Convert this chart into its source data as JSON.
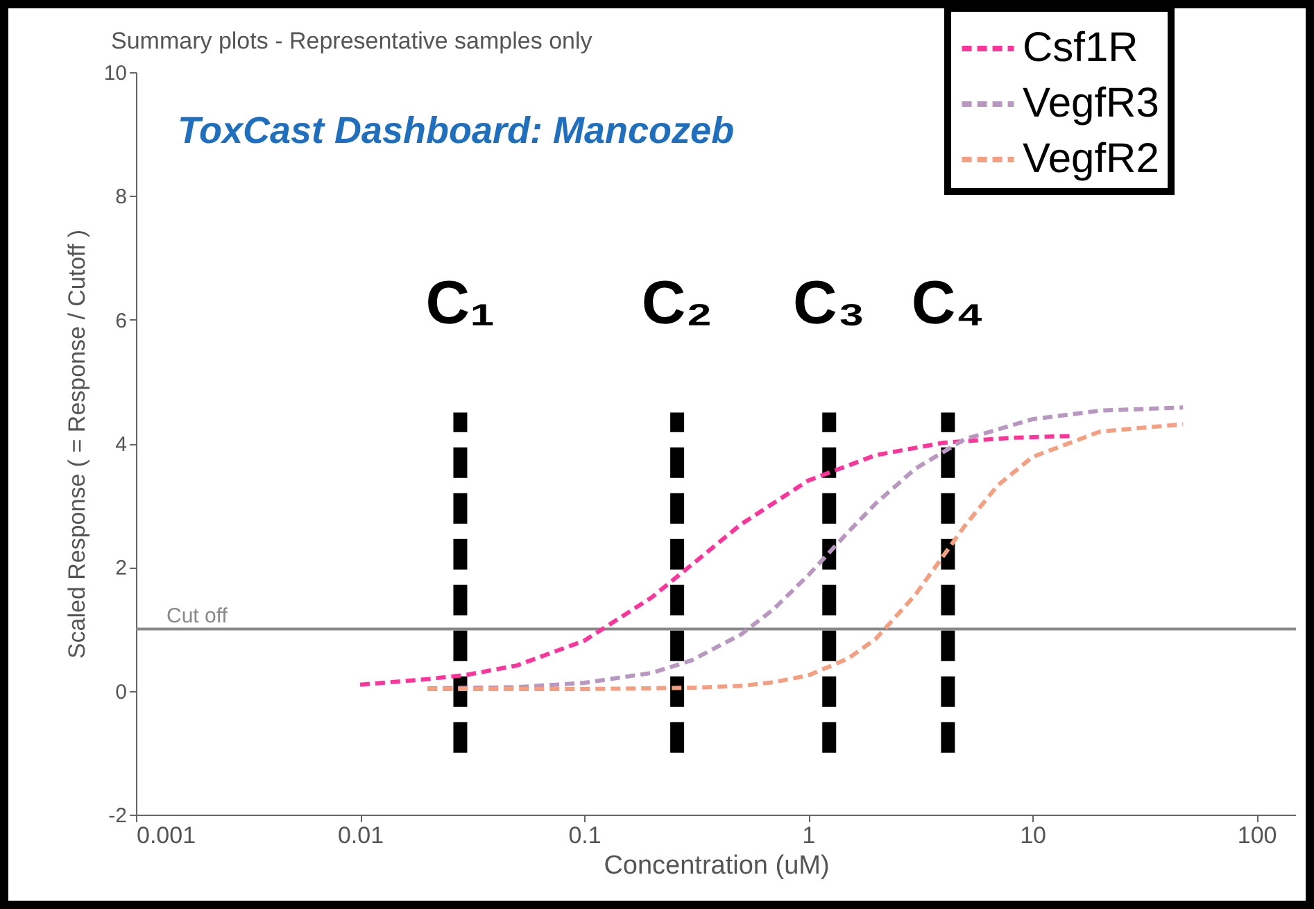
{
  "chart_data": {
    "type": "line",
    "title": "Summary plots - Representative samples only",
    "subtitle": "ToxCast Dashboard: Mancozeb",
    "xlabel": "Concentration (uM)",
    "ylabel": "Scaled Response ( = Response / Cutoff )",
    "log": "x",
    "xlim": [
      0.001,
      150
    ],
    "xticks": [
      0.001,
      0.01,
      0.1,
      1,
      10,
      100
    ],
    "ylim": [
      -2,
      10
    ],
    "yticks": [
      -2,
      0,
      2,
      4,
      6,
      8,
      10
    ],
    "grid": false,
    "legend": "top right",
    "line_style": "dashed",
    "marker": "none",
    "series": [
      {
        "name": "Csf1R",
        "color": "#ff3399",
        "x": [
          0.01,
          0.02,
          0.03,
          0.05,
          0.1,
          0.2,
          0.3,
          0.5,
          1,
          2,
          4,
          8,
          15
        ],
        "values": [
          0.1,
          0.19,
          0.26,
          0.41,
          0.81,
          1.51,
          2.03,
          2.69,
          3.4,
          3.81,
          4.01,
          4.09,
          4.12
        ]
      },
      {
        "name": "VegfR3",
        "color": "#b898c0",
        "x": [
          0.02,
          0.05,
          0.1,
          0.2,
          0.3,
          0.5,
          0.7,
          1,
          1.5,
          2,
          3,
          5,
          10,
          20,
          47
        ],
        "values": [
          0.04,
          0.06,
          0.13,
          0.29,
          0.49,
          0.91,
          1.32,
          1.87,
          2.56,
          3.03,
          3.59,
          4.07,
          4.39,
          4.53,
          4.58
        ]
      },
      {
        "name": "VegfR2",
        "color": "#f4a080",
        "x": [
          0.02,
          0.1,
          0.3,
          0.5,
          0.7,
          1,
          1.5,
          2,
          3,
          4,
          5,
          7,
          10,
          20,
          47
        ],
        "values": [
          0.03,
          0.03,
          0.05,
          0.08,
          0.14,
          0.25,
          0.52,
          0.84,
          1.55,
          2.18,
          2.67,
          3.32,
          3.78,
          4.19,
          4.31
        ]
      },
      {
        "color": "#000000",
        "x": [
          0.028,
          0.028
        ],
        "values": [
          -1,
          4.5
        ]
      },
      {
        "color": "#000000",
        "x": [
          0.26,
          0.26
        ],
        "values": [
          -1,
          4.5
        ]
      },
      {
        "color": "#000000",
        "x": [
          1.24,
          1.24
        ],
        "values": [
          -1,
          4.5
        ]
      },
      {
        "color": "#000000",
        "x": [
          4.2,
          4.2
        ],
        "values": [
          -1,
          4.5
        ]
      }
    ],
    "ref_lines": [
      {
        "axis": "y",
        "value": 1,
        "label": "Cut off",
        "color": "#888888"
      }
    ],
    "annotations": [
      {
        "text": "C₁",
        "x": 0.028,
        "y": 4.5
      },
      {
        "text": "C₂",
        "x": 0.26,
        "y": 4.5
      },
      {
        "text": "C₃",
        "x": 1.24,
        "y": 4.5
      },
      {
        "text": "C₄",
        "x": 4.2,
        "y": 4.5
      }
    ]
  }
}
